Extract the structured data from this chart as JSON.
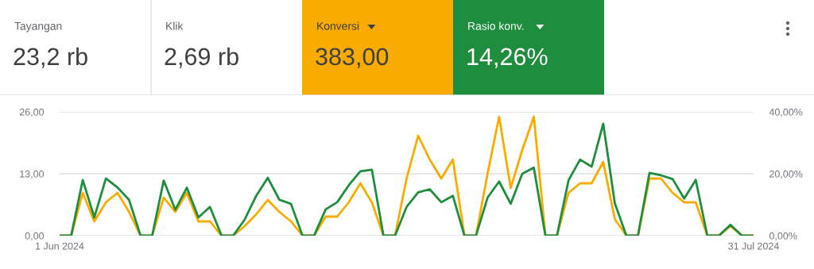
{
  "chart_data": [
    {
      "type": "other",
      "annotations": [
        "Tayangan",
        "23,2 rb",
        "Klik",
        "2,69 rb",
        "Konversi",
        "383,00",
        "Rasio konv.",
        "14,26%"
      ],
      "colors": [
        null,
        null,
        "#f9ab00",
        "#1e8e3e"
      ]
    },
    {
      "type": "line",
      "x": [
        "2024-06-01",
        "2024-06-02",
        "2024-06-03",
        "2024-06-04",
        "2024-06-05",
        "2024-06-06",
        "2024-06-07",
        "2024-06-08",
        "2024-06-09",
        "2024-06-10",
        "2024-06-11",
        "2024-06-12",
        "2024-06-13",
        "2024-06-14",
        "2024-06-15",
        "2024-06-16",
        "2024-06-17",
        "2024-06-18",
        "2024-06-19",
        "2024-06-20",
        "2024-06-21",
        "2024-06-22",
        "2024-06-23",
        "2024-06-24",
        "2024-06-25",
        "2024-06-26",
        "2024-06-27",
        "2024-06-28",
        "2024-06-29",
        "2024-06-30",
        "2024-07-01",
        "2024-07-02",
        "2024-07-03",
        "2024-07-04",
        "2024-07-05",
        "2024-07-06",
        "2024-07-07",
        "2024-07-08",
        "2024-07-09",
        "2024-07-10",
        "2024-07-11",
        "2024-07-12",
        "2024-07-13",
        "2024-07-14",
        "2024-07-15",
        "2024-07-16",
        "2024-07-17",
        "2024-07-18",
        "2024-07-19",
        "2024-07-20",
        "2024-07-21",
        "2024-07-22",
        "2024-07-23",
        "2024-07-24",
        "2024-07-25",
        "2024-07-26",
        "2024-07-27",
        "2024-07-28",
        "2024-07-29",
        "2024-07-30",
        "2024-07-31"
      ],
      "series": [
        {
          "color": "#f9ab00",
          "values": [
            0,
            0,
            9,
            3,
            7,
            9,
            5,
            0,
            0,
            8,
            5,
            9,
            3,
            3,
            0,
            0,
            2,
            4.5,
            7.5,
            5,
            3,
            0,
            0,
            4,
            4,
            7,
            11,
            7,
            0,
            0,
            12,
            21,
            16,
            12,
            16,
            0,
            0,
            13,
            25,
            10,
            18,
            25,
            0,
            0,
            9,
            11,
            11,
            15.5,
            3.5,
            0,
            0,
            12,
            12,
            9,
            7,
            7,
            0,
            0,
            2,
            0,
            0
          ]
        },
        {
          "color": "#1e8e3e",
          "axis": "y2",
          "values": [
            0,
            0,
            18,
            5.9,
            18.5,
            15.6,
            11.6,
            0,
            0,
            17.8,
            8.4,
            15.5,
            5.9,
            9.3,
            0,
            0,
            5.2,
            12.9,
            18.7,
            11.6,
            10.3,
            0,
            0,
            8.5,
            10.8,
            16.3,
            20.8,
            21.3,
            0,
            0,
            9.3,
            14,
            15,
            10.8,
            12.9,
            0,
            0,
            12.3,
            17.5,
            10.3,
            20,
            22,
            0,
            0,
            17.9,
            24.6,
            22.3,
            36.2,
            10.5,
            0,
            0,
            20.3,
            19.5,
            18.3,
            12,
            18,
            0,
            0,
            3.5,
            0,
            0
          ]
        }
      ],
      "xlim": [
        "2024-06-01",
        "2024-07-31"
      ],
      "xticks": [
        {
          "value": "2024-06-01",
          "label": "1 Jun 2024"
        },
        {
          "value": "2024-07-31",
          "label": "31 Jul 2024"
        }
      ],
      "ylim": [
        0,
        26
      ],
      "yticks": [
        {
          "value": 0,
          "label": "0,00"
        },
        {
          "value": 13,
          "label": "13,00"
        },
        {
          "value": 26,
          "label": "26,00"
        }
      ],
      "y2lim": [
        0,
        40
      ],
      "y2ticks": [
        {
          "value": 0,
          "label": "0,00%"
        },
        {
          "value": 20,
          "label": "20,00%"
        },
        {
          "value": 40,
          "label": "40,00%"
        }
      ],
      "grid": "y",
      "marker": "none",
      "line_style": "solid"
    }
  ]
}
